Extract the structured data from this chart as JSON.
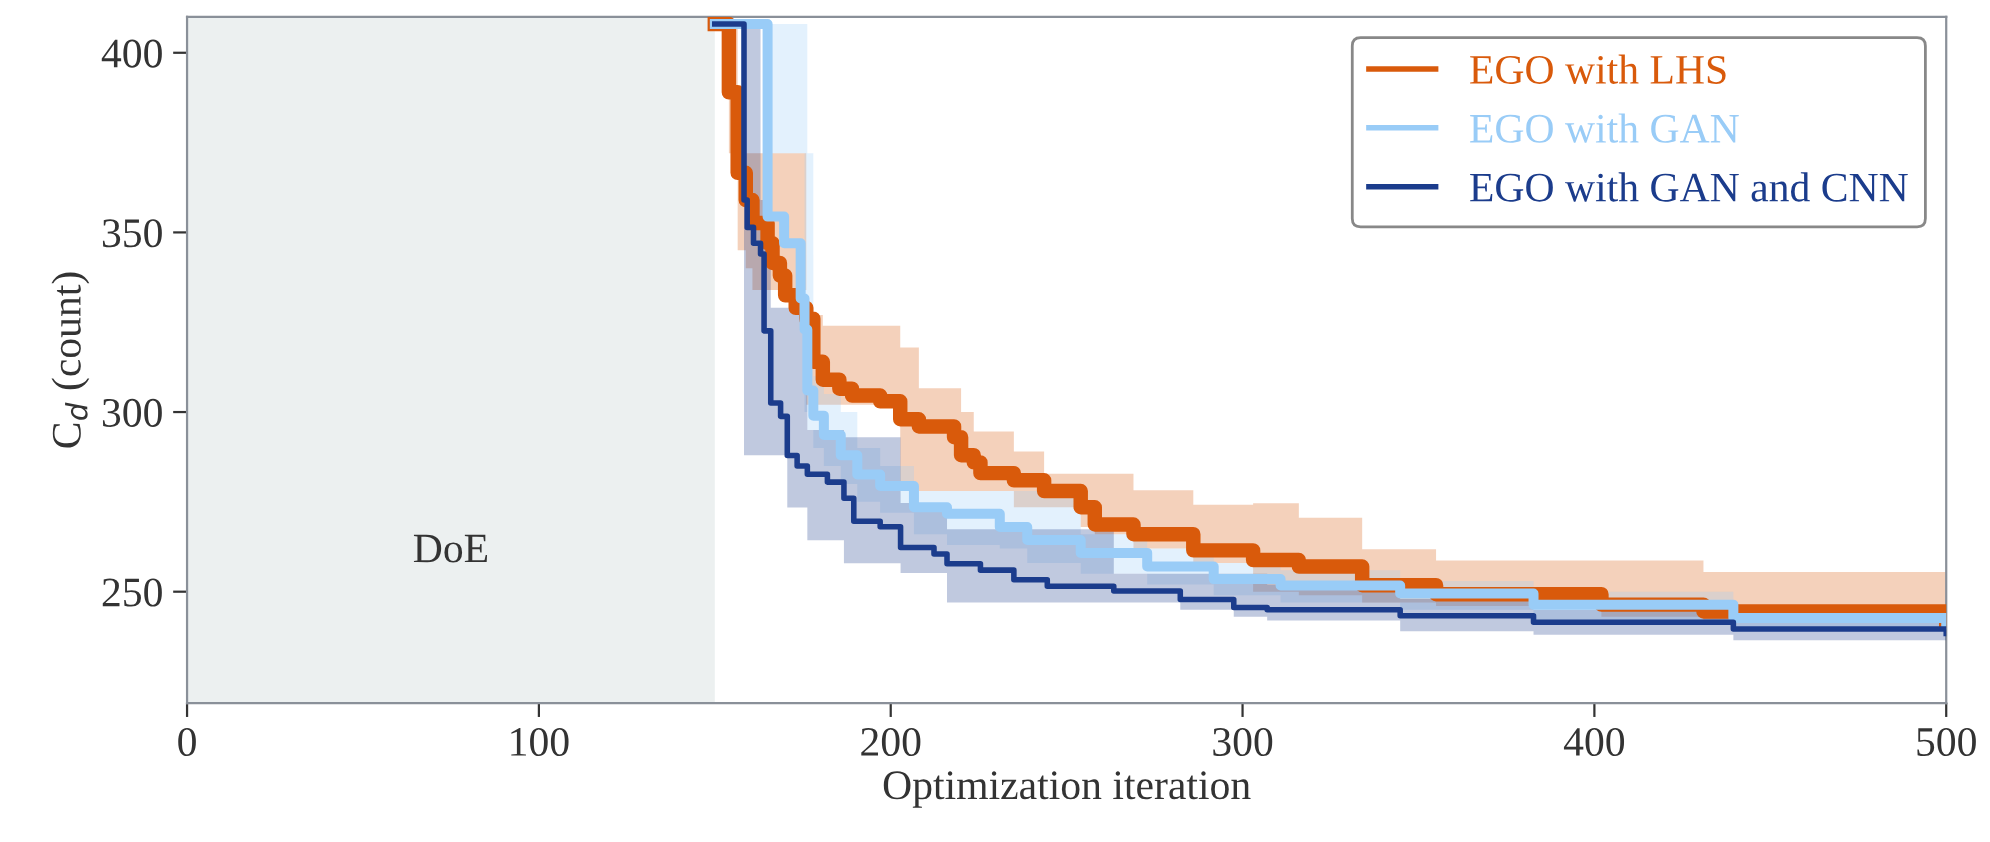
{
  "chart_data": {
    "type": "step",
    "xlabel": "Optimization iteration",
    "ylabel": "C$_{d}$ (count)",
    "xlim": [
      0,
      500
    ],
    "ylim": [
      219,
      410
    ],
    "xticks": [
      0,
      100,
      200,
      300,
      400,
      500
    ],
    "yticks": [
      250,
      300,
      350,
      400
    ],
    "grid": false,
    "legend": "top right",
    "line_style": "solid",
    "marker": "none",
    "bands": [
      {
        "axis": "x",
        "from": 0,
        "to": 150,
        "label": "DoE",
        "color": "#ecf0f0"
      }
    ],
    "series": [
      {
        "name": "EGO with LHS",
        "color": "#d95a0b",
        "x": [
          150,
          154,
          156.5,
          158.8,
          160.7,
          165,
          166.4,
          168.5,
          170,
          173,
          176,
          178,
          180.7,
          185.4,
          189,
          197,
          202.7,
          208,
          218,
          220,
          223.6,
          225.5,
          235,
          243.6,
          254,
          258,
          269,
          286,
          303,
          316,
          334,
          355,
          402,
          431,
          500
        ],
        "values": [
          408,
          389,
          366.6,
          359,
          352.6,
          347,
          341.5,
          338,
          332.5,
          329,
          326,
          314,
          309,
          306.5,
          304.6,
          303,
          298,
          296,
          293,
          288,
          286,
          283,
          281,
          278,
          273.5,
          268.7,
          266,
          261.5,
          258.8,
          257,
          251.8,
          249.3,
          246.4,
          244.5,
          242
        ],
        "upper": [
          408,
          408,
          372,
          372,
          372,
          372,
          372,
          372,
          372,
          372,
          327,
          327,
          324,
          324,
          324,
          324,
          318,
          306.6,
          306.6,
          300,
          294.6,
          294.6,
          289,
          282.8,
          282.8,
          282.8,
          278.2,
          274.2,
          274.6,
          270.6,
          261.8,
          258.7,
          258.7,
          255.5,
          250.2
        ],
        "lower": [
          408,
          372,
          345,
          340,
          334,
          334,
          334,
          334,
          334,
          334,
          302,
          302,
          302,
          302,
          302,
          302,
          278,
          278,
          278,
          278,
          278,
          278,
          273.5,
          273.5,
          268,
          266,
          262,
          258,
          250,
          249,
          247,
          246,
          243,
          242,
          240
        ]
      },
      {
        "name": "EGO with GAN",
        "color": "#99ccf7",
        "x": [
          150,
          165,
          169.7,
          174.4,
          175.5,
          176.3,
          178,
          181,
          185.8,
          190.5,
          197,
          206.6,
          216,
          231,
          238.8,
          254,
          272.9,
          291.8,
          310.8,
          344.8,
          382.7,
          439.5,
          500
        ],
        "values": [
          408,
          354.4,
          347,
          331.6,
          323,
          306,
          299,
          293.6,
          288,
          282.6,
          279.4,
          273.5,
          271.7,
          268,
          264.4,
          260.8,
          257,
          253.5,
          251.7,
          249.5,
          246.4,
          242.7,
          240.9
        ],
        "upper": [
          408,
          408,
          408,
          408,
          408,
          372,
          310,
          305,
          300,
          290,
          285,
          278,
          278,
          278,
          278,
          266,
          262,
          258,
          256,
          253,
          250,
          246,
          244
        ],
        "lower": [
          408,
          372,
          372,
          372,
          300,
          295,
          290,
          285,
          280,
          275,
          272,
          266,
          263,
          262,
          258,
          255,
          252,
          249,
          247,
          245,
          242,
          240,
          239
        ]
      },
      {
        "name": "EGO with GAN and CNN",
        "color": "#1b3c8c",
        "x": [
          150,
          158.3,
          159.2,
          161,
          163,
          164,
          165.9,
          168.7,
          170.6,
          173.4,
          176.3,
          182,
          186.7,
          189.5,
          197,
          202.8,
          212.3,
          216,
          225.5,
          235,
          244.5,
          263.4,
          282.3,
          297.5,
          307,
          344.8,
          382.7,
          439.5,
          500
        ],
        "values": [
          408,
          359,
          351.4,
          347,
          344,
          322.6,
          302.5,
          298.8,
          287.9,
          285,
          282.7,
          280.5,
          276,
          269.6,
          268.1,
          262.3,
          260.5,
          257.8,
          256,
          253.3,
          251.5,
          250.2,
          247.8,
          245.6,
          245,
          243.3,
          241.5,
          239.6,
          238.4
        ],
        "upper": [
          408,
          408,
          408,
          408,
          359,
          359,
          329,
          329,
          329,
          329,
          295,
          295,
          293,
          293,
          293,
          274.7,
          274.7,
          267.4,
          267.4,
          267.4,
          267.4,
          255,
          255,
          255,
          252,
          248,
          245,
          242,
          241
        ],
        "lower": [
          408,
          288,
          288,
          288,
          288,
          288,
          288,
          288,
          273.4,
          273.4,
          264.3,
          264.3,
          257.9,
          257.9,
          257.9,
          255.2,
          255.2,
          247,
          247,
          247,
          247,
          247,
          245,
          243,
          242,
          239,
          238,
          236.5,
          235.5
        ]
      }
    ]
  }
}
